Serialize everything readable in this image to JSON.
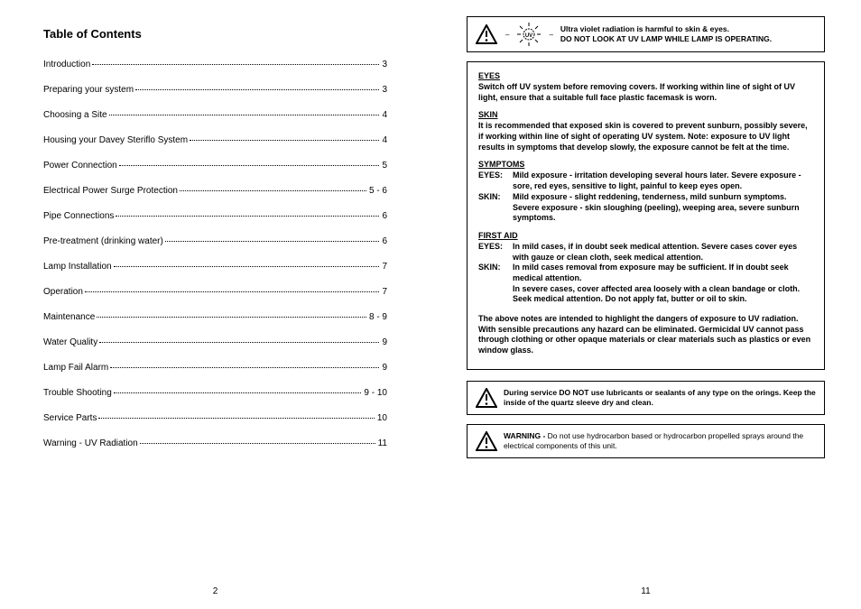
{
  "left": {
    "title": "Table of Contents",
    "items": [
      {
        "label": "Introduction",
        "page": "3"
      },
      {
        "label": "Preparing your system",
        "page": "3"
      },
      {
        "label": "Choosing a Site",
        "page": "4"
      },
      {
        "label": "Housing your Davey Steriflo System",
        "page": "4"
      },
      {
        "label": "Power Connection",
        "page": "5"
      },
      {
        "label": "Electrical Power Surge Protection",
        "page": "5 - 6"
      },
      {
        "label": "Pipe Connections",
        "page": "6"
      },
      {
        "label": "Pre-treatment (drinking water)",
        "page": "6"
      },
      {
        "label": "Lamp Installation",
        "page": "7"
      },
      {
        "label": "Operation",
        "page": "7"
      },
      {
        "label": "Maintenance",
        "page": "8 - 9"
      },
      {
        "label": "Water Quality",
        "page": "9"
      },
      {
        "label": "Lamp Fail Alarm",
        "page": "9"
      },
      {
        "label": "Trouble Shooting",
        "page": "9 - 10"
      },
      {
        "label": "Service Parts",
        "page": "10"
      },
      {
        "label": "Warning - UV Radiation",
        "page": "11"
      }
    ],
    "page_number": "2"
  },
  "right": {
    "top_warning": {
      "line1": "Ultra violet radiation is harmful to skin & eyes.",
      "line2": "DO NOT LOOK AT UV LAMP WHILE LAMP IS OPERATING."
    },
    "eyes": {
      "head": "EYES",
      "body": "Switch off UV system before removing covers. If working within line of sight of UV light, ensure that a suitable full face plastic facemask is worn."
    },
    "skin": {
      "head": "SKIN",
      "body": "It is recommended that exposed skin is covered to prevent sunburn, possibly severe, if working within line of sight of operating UV system. Note: exposure to UV light results in symptoms that develop slowly, the exposure cannot be felt at the time."
    },
    "symptoms": {
      "head": "SYMPTOMS",
      "eyes_label": "EYES:",
      "eyes_body": "Mild exposure - irritation developing several hours later. Severe exposure - sore, red eyes, sensitive to light, painful to keep eyes open.",
      "skin_label": "SKIN:",
      "skin_body1": "Mild exposure - slight reddening, tenderness, mild sunburn symptoms.",
      "skin_body2": "Severe exposure - skin sloughing (peeling), weeping area, severe sunburn symptoms."
    },
    "firstaid": {
      "head": "FIRST AID",
      "eyes_label": "EYES:",
      "eyes_body": "In mild cases, if in doubt seek medical attention. Severe cases cover eyes with gauze or clean cloth, seek medical attention.",
      "skin_label": "SKIN:",
      "skin_body1": "In mild cases removal from exposure may be sufficient. If in doubt seek medical attention.",
      "skin_body2": "In severe cases, cover affected area loosely with a clean bandage or cloth. Seek medical attention. Do not apply fat, butter or oil to skin."
    },
    "closing": "The above notes are intended to highlight the dangers of exposure to UV radiation. With sensible precautions any hazard can be eliminated. Germicidal UV cannot pass through clothing or other opaque  materials or clear materials such as plastics or even window glass.",
    "service_warning": "During service DO NOT use lubricants or sealants of any type on the orings. Keep the inside of the quartz sleeve dry and clean.",
    "hydrocarbon_warning_prefix": "WARNING - ",
    "hydrocarbon_warning_body": "Do not use hydrocarbon based or hydrocarbon propelled sprays around the electrical components of this unit.",
    "page_number": "11",
    "uv_label": "UV"
  }
}
